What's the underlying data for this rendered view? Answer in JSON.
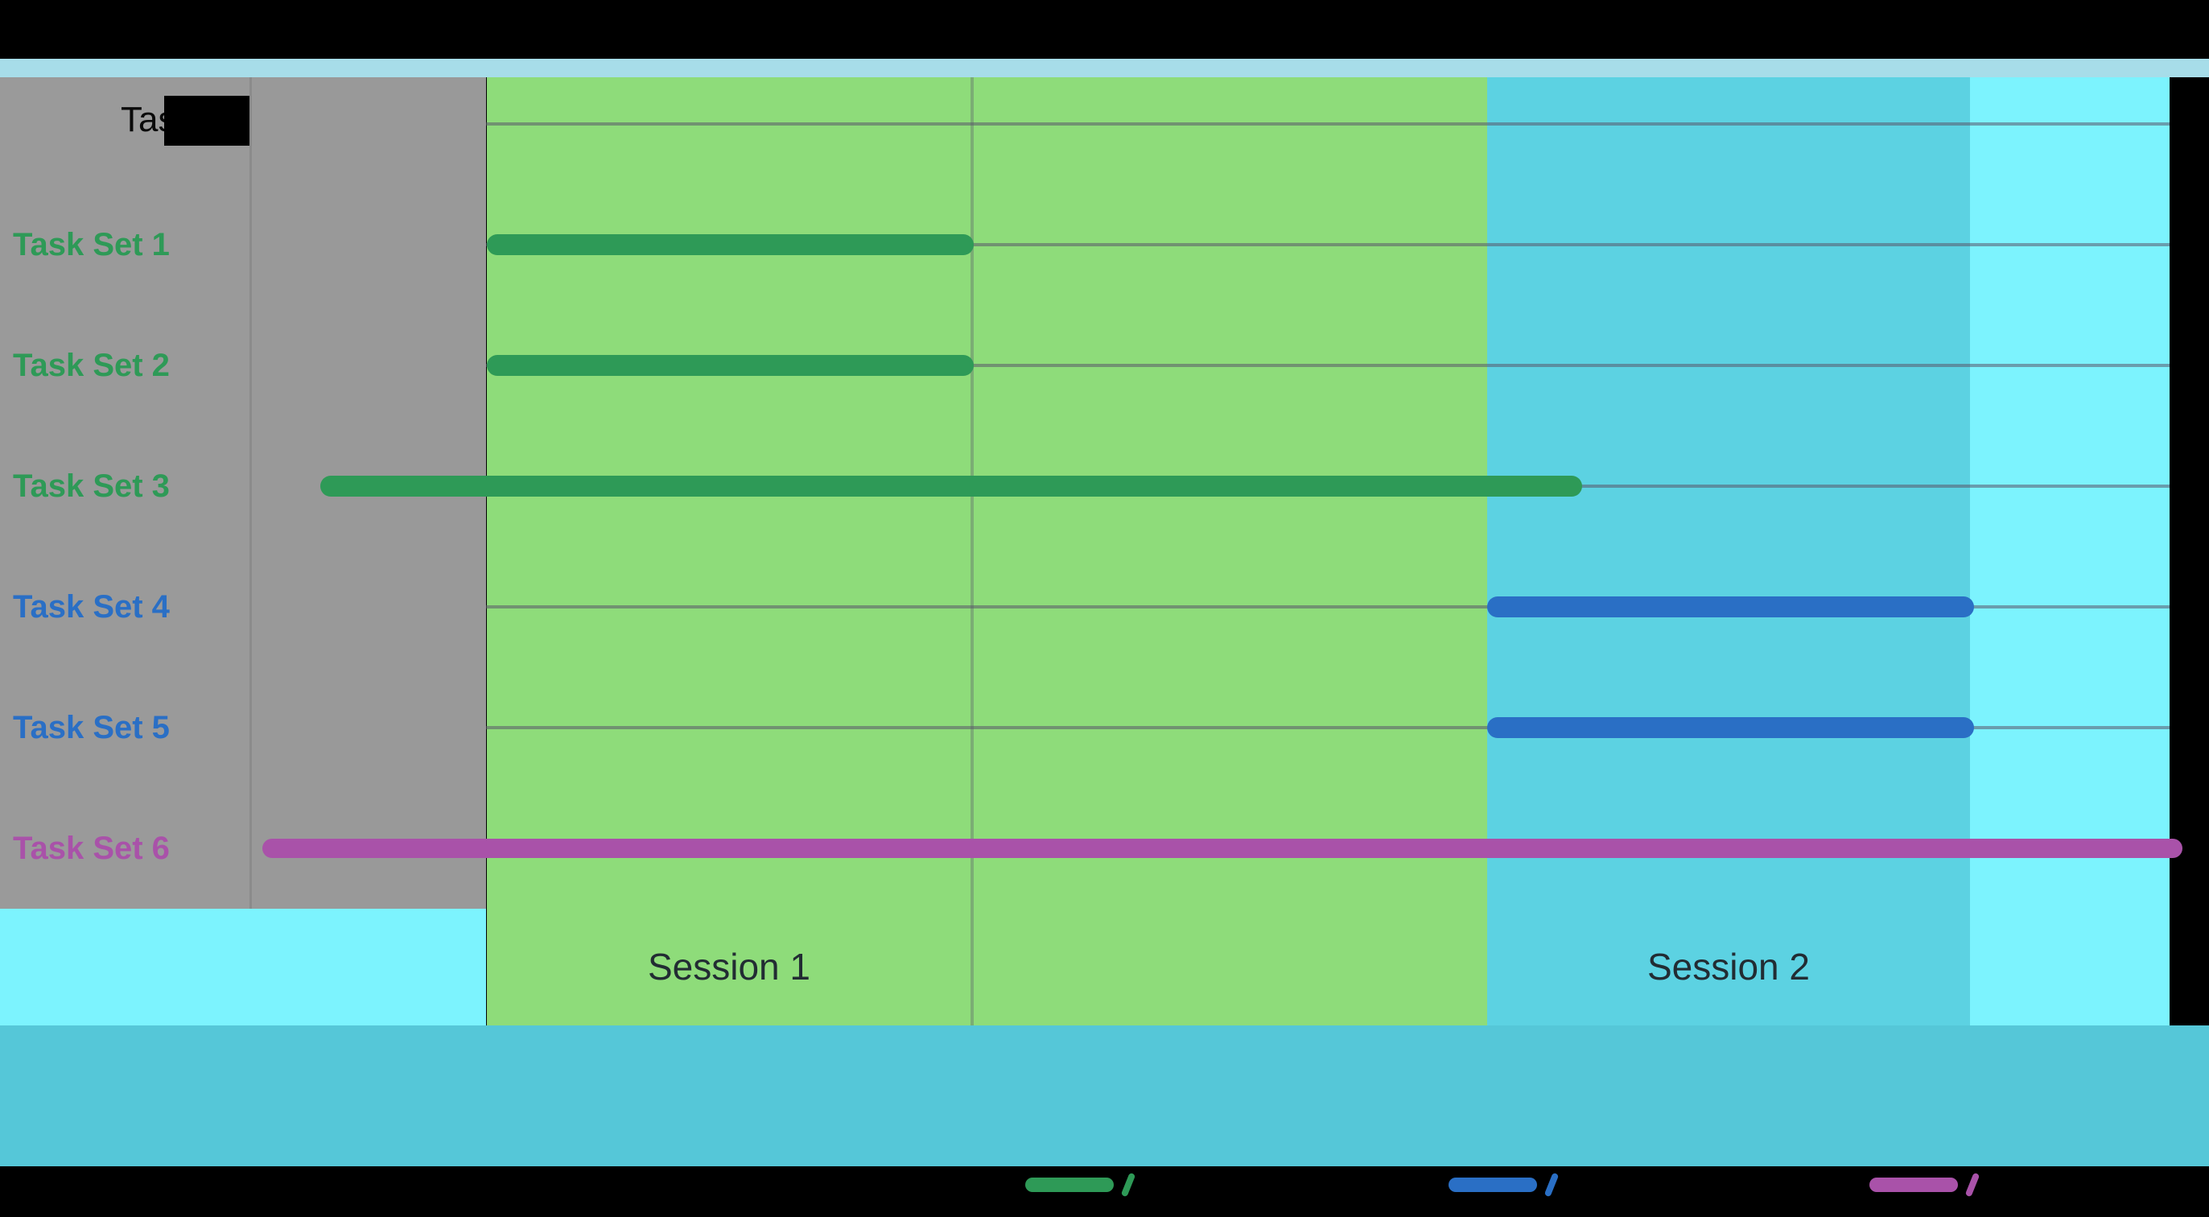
{
  "header": {
    "column_title": "Task"
  },
  "colors": {
    "background_black": "#000000",
    "label_column_gray": "#9a9a9a",
    "pre_session_column_gray": "#999999",
    "top_strip_blue": "#a7dde9",
    "session1_green": "#8edc7a",
    "session2_cyan": "#5cd2e2",
    "tail_column_cyan": "#7cf3fe",
    "bottom_band_cyan": "#55c7d8",
    "gridline_gray": "rgba(90,85,105,0.55)",
    "series_green": "#2e9a57",
    "series_blue": "#2a6fc5",
    "series_purple": "#a952a9",
    "session_label_text": "#222c33",
    "header_text": "#0a0a0a"
  },
  "chart_data": {
    "type": "bar",
    "variant": "gantt-timeline",
    "title": "",
    "xlabel": "",
    "ylabel": "Task",
    "x_axis": {
      "min": 0,
      "max": 100,
      "unit": "percent of visible timeline",
      "tick_labels_visible": false
    },
    "grid": true,
    "rows": [
      {
        "label": "Task Set 1",
        "series": "green",
        "start": 12.2,
        "end": 37.4
      },
      {
        "label": "Task Set 2",
        "series": "green",
        "start": 12.2,
        "end": 37.4
      },
      {
        "label": "Task Set 3",
        "series": "green",
        "start": 3.6,
        "end": 68.9
      },
      {
        "label": "Task Set 4",
        "series": "blue",
        "start": 64.0,
        "end": 89.2
      },
      {
        "label": "Task Set 5",
        "series": "blue",
        "start": 64.0,
        "end": 89.2
      },
      {
        "label": "Task Set 6",
        "series": "purple",
        "start": 0.6,
        "end": 100.0
      }
    ],
    "regions": [
      {
        "label": "Session 1",
        "start": 12.2,
        "end": 64.0,
        "color": "#8edc7a"
      },
      {
        "label": "Session 2",
        "start": 64.0,
        "end": 89.0,
        "color": "#5cd2e2"
      }
    ],
    "legend": {
      "position": "bottom",
      "entries": [
        {
          "name": "series-1-green",
          "color": "#2e9a57",
          "label": ""
        },
        {
          "name": "series-2-blue",
          "color": "#2a6fc5",
          "label": ""
        },
        {
          "name": "series-3-purple",
          "color": "#a952a9",
          "label": ""
        }
      ]
    }
  }
}
